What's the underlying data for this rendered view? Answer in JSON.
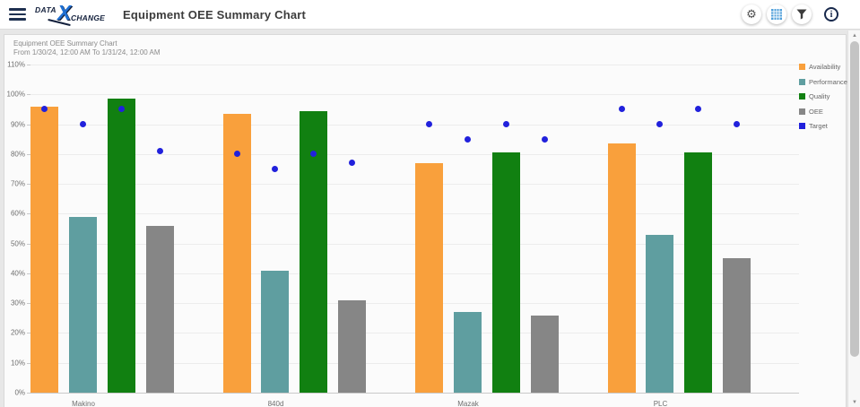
{
  "header": {
    "logo": {
      "data": "DATA",
      "x": "X",
      "change": "CHANGE"
    },
    "title": "Equipment OEE Summary Chart",
    "actions": {
      "settings_icon": "gear-icon",
      "grid_icon": "data-grid-icon",
      "filter_icon": "funnel-icon",
      "info_icon": "info-icon"
    }
  },
  "chart_data": {
    "type": "bar",
    "title": "Equipment OEE Summary Chart",
    "subtitle": "From 1/30/24, 12:00 AM To 1/31/24, 12:00 AM",
    "categories": [
      "Makino",
      "840d",
      "Mazak",
      "PLC"
    ],
    "series": [
      {
        "name": "Availability",
        "color": "#F9A03C",
        "values": [
          96,
          93.5,
          77,
          83.5
        ]
      },
      {
        "name": "Performance",
        "color": "#5F9EA0",
        "values": [
          59,
          41,
          27,
          53
        ]
      },
      {
        "name": "Quality",
        "color": "#118011",
        "values": [
          98.5,
          94.5,
          80.5,
          80.5
        ]
      },
      {
        "name": "OEE",
        "color": "#868686",
        "values": [
          56,
          31,
          26,
          45
        ]
      }
    ],
    "target": {
      "name": "Target",
      "color": "#2121DC",
      "values_by_series": [
        [
          95,
          80,
          90,
          95
        ],
        [
          90,
          75,
          85,
          90
        ],
        [
          95,
          80,
          90,
          95
        ],
        [
          81,
          77,
          85,
          90
        ]
      ]
    },
    "ylim": [
      0,
      110
    ],
    "y_tick_step": 10,
    "y_tick_labels": [
      "0%",
      "10%",
      "20%",
      "30%",
      "40%",
      "50%",
      "60%",
      "70%",
      "80%",
      "90%",
      "100%",
      "110%"
    ],
    "grid": true,
    "legend_position": "top-right",
    "legend": [
      "Availability",
      "Performance",
      "Quality",
      "OEE",
      "Target"
    ]
  }
}
